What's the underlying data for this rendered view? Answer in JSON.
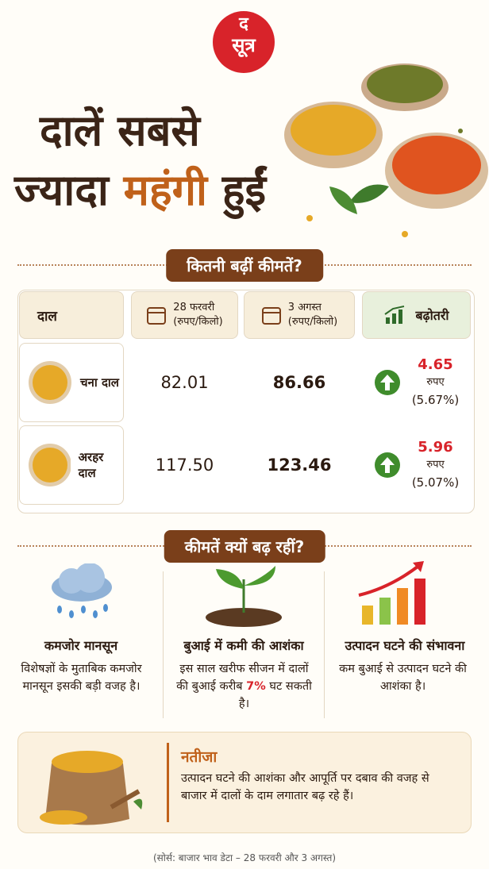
{
  "logo": {
    "top": "द",
    "bottom": "सूत्र"
  },
  "title": {
    "line1": "दालें सबसे",
    "line2_start": "ज्यादा",
    "line2_highlight": "महंगी",
    "line2_end": "हुईं"
  },
  "table": {
    "heading": "कितनी बढ़ीं कीमतें?",
    "columns": [
      {
        "label": "दाल"
      },
      {
        "label": "28 फरवरी",
        "unit": "(रुपए/किलो)"
      },
      {
        "label": "3 अगस्त",
        "unit": "(रुपए/किलो)"
      },
      {
        "label": "बढ़ोतरी"
      }
    ],
    "rows": [
      {
        "name": "चना दाल",
        "feb": "82.01",
        "aug": "86.66",
        "increase": "4.65",
        "increase_unit": "रुपए",
        "percent": "(5.67%)"
      },
      {
        "name": "अरहर दाल",
        "feb": "117.50",
        "aug": "123.46",
        "increase": "5.96",
        "increase_unit": "रुपए",
        "percent": "(5.07%)"
      }
    ]
  },
  "reasons": {
    "heading": "कीमतें क्यों बढ़ रहीं?",
    "items": [
      {
        "title": "कमजोर मानसून",
        "text": "विशेषज्ञों के मुताबिक कमजोर मानसून इसकी बड़ी वजह है।"
      },
      {
        "title": "बुआई में कमी की आशंका",
        "text_before": "इस साल खरीफ सीजन में दालों की बुआई करीब",
        "highlight": "7%",
        "text_after": "घट सकती है।"
      },
      {
        "title": "उत्पादन घटने की संभावना",
        "text": "कम बुआई से उत्पादन घटने की आशंका है।"
      }
    ]
  },
  "conclusion": {
    "title": "नतीजा",
    "text": "उत्पादन घटने की आशंका और आपूर्ति पर दबाव की वजह से बाजार में दालों के दाम लगातार बढ़ रहे हैं।"
  },
  "source": "(सोर्स: बाजार भाव डेटा – 28 फरवरी और 3 अगस्त)"
}
